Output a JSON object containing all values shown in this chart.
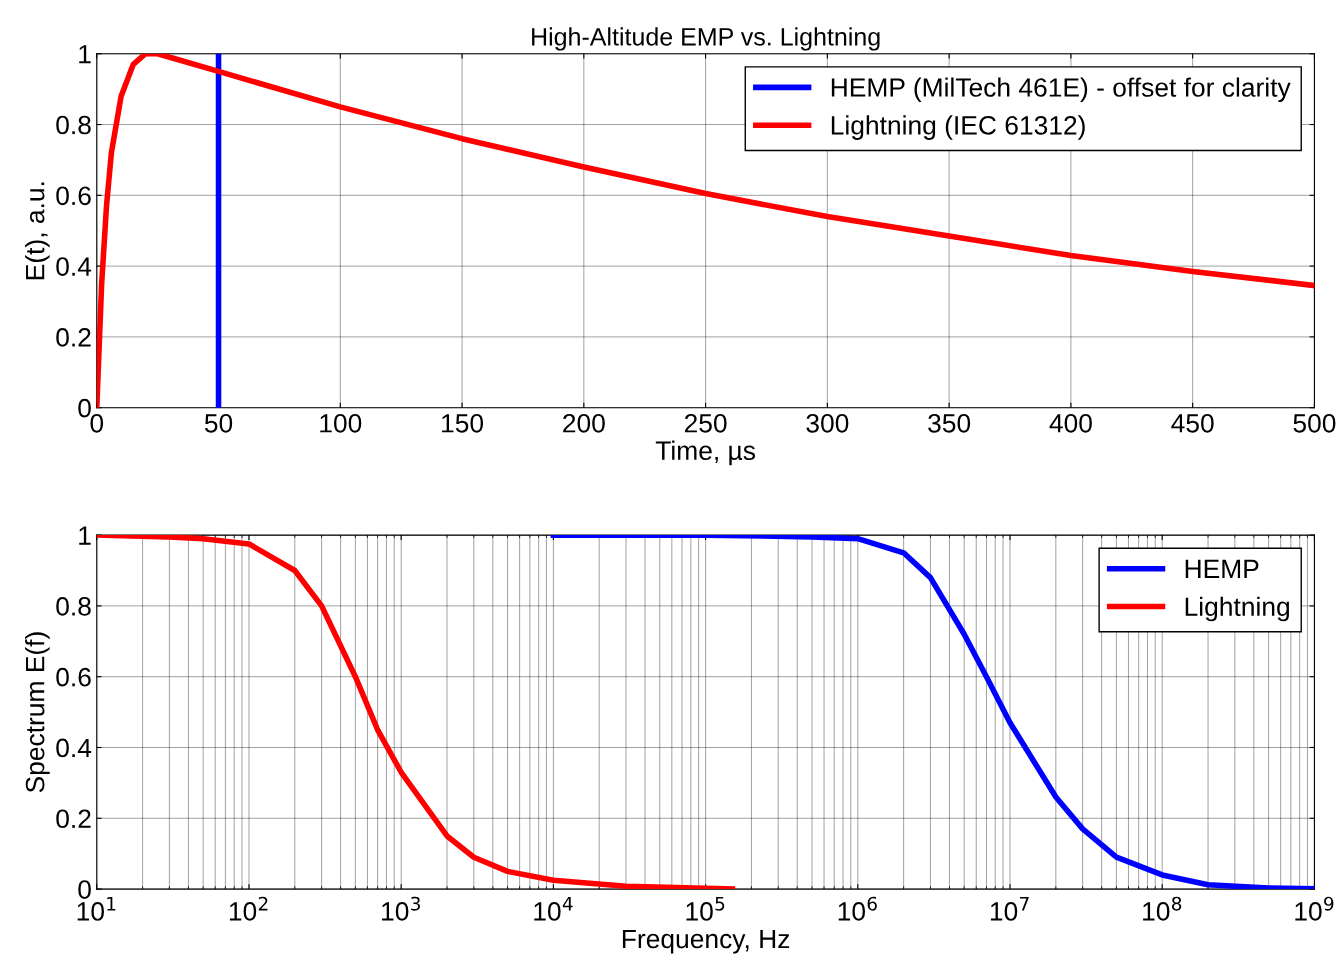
{
  "chart_data": [
    {
      "type": "line",
      "title": "High-Altitude EMP vs. Lightning",
      "xlabel": "Time, µs",
      "ylabel": "E(t), a.u.",
      "xlim": [
        0,
        500
      ],
      "ylim": [
        0,
        1
      ],
      "xticks": [
        0,
        50,
        100,
        150,
        200,
        250,
        300,
        350,
        400,
        450,
        500
      ],
      "yticks": [
        0,
        0.2,
        0.4,
        0.6,
        0.8,
        1
      ],
      "grid": true,
      "legend": "top right",
      "marker": "none",
      "line_style": "solid",
      "series": [
        {
          "name": "HEMP (MilTech 461E) - offset for clarity",
          "color": "#0000ff",
          "x": [
            50,
            50
          ],
          "values": [
            0,
            1
          ]
        },
        {
          "name": "Lightning (IEC 61312)",
          "color": "#ff0000",
          "x": [
            0,
            2,
            4,
            6,
            8,
            10,
            15,
            20,
            25,
            30,
            50,
            100,
            150,
            200,
            250,
            300,
            350,
            400,
            450,
            500
          ],
          "values": [
            0,
            0.35,
            0.57,
            0.72,
            0.8,
            0.88,
            0.97,
            1.0,
            1.0,
            0.99,
            0.95,
            0.85,
            0.76,
            0.68,
            0.605,
            0.54,
            0.485,
            0.43,
            0.385,
            0.345
          ]
        }
      ]
    },
    {
      "type": "line",
      "xlabel": "Frequency, Hz",
      "ylabel": "Spectrum E(f)",
      "log": "x",
      "xlim": [
        10,
        1000000000
      ],
      "ylim": [
        0,
        1
      ],
      "xticks": [
        {
          "value": 10,
          "label": "10$^{1}$"
        },
        {
          "value": 100,
          "label": "10$^{2}$"
        },
        {
          "value": 1000,
          "label": "10$^{3}$"
        },
        {
          "value": 10000,
          "label": "10$^{4}$"
        },
        {
          "value": 100000,
          "label": "10$^{5}$"
        },
        {
          "value": 1000000,
          "label": "10$^{6}$"
        },
        {
          "value": 10000000,
          "label": "10$^{7}$"
        },
        {
          "value": 100000000,
          "label": "10$^{8}$"
        },
        {
          "value": 1000000000,
          "label": "10$^{9}$"
        }
      ],
      "yticks": [
        0,
        0.2,
        0.4,
        0.6,
        0.8,
        1
      ],
      "grid": true,
      "legend": "top right",
      "marker": "none",
      "line_style": "solid",
      "series": [
        {
          "name": "HEMP",
          "color": "#0000ff",
          "x": [
            10000,
            100000,
            500000,
            1000000,
            2000000,
            3000000,
            5000000,
            7000000,
            10000000,
            20000000,
            30000000,
            50000000,
            100000000,
            200000000,
            500000000,
            1000000000
          ],
          "values": [
            1,
            1,
            0.995,
            0.99,
            0.95,
            0.88,
            0.72,
            0.6,
            0.47,
            0.26,
            0.17,
            0.09,
            0.04,
            0.012,
            0.003,
            0.001
          ]
        },
        {
          "name": "Lightning",
          "color": "#ff0000",
          "x": [
            10,
            30,
            50,
            100,
            200,
            300,
            500,
            700,
            1000,
            2000,
            3000,
            5000,
            10000,
            30000,
            100000,
            150000
          ],
          "values": [
            1,
            0.995,
            0.99,
            0.975,
            0.9,
            0.8,
            0.6,
            0.45,
            0.33,
            0.15,
            0.09,
            0.05,
            0.025,
            0.008,
            0.002,
            0.0
          ]
        }
      ]
    }
  ]
}
